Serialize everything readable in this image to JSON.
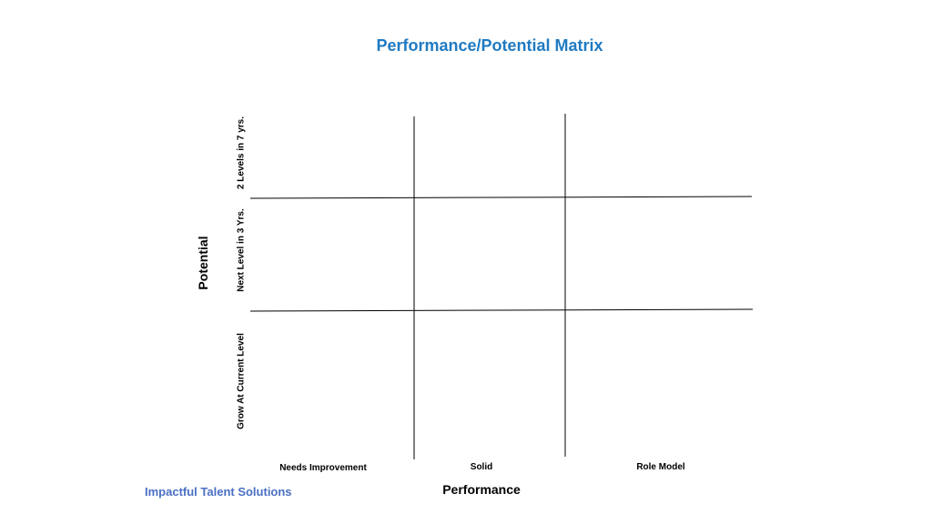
{
  "title": "Performance/Potential Matrix",
  "y_axis": {
    "label": "Potential",
    "rows": [
      "2 Levels in 7 yrs.",
      "Next Level in 3 Yrs.",
      "Grow At Current Level"
    ]
  },
  "x_axis": {
    "label": "Performance",
    "columns": [
      "Needs Improvement",
      "Solid",
      "Role Model"
    ]
  },
  "footer": "Impactful Talent Solutions",
  "colors": {
    "title": "#1f7ac2",
    "footer": "#4a6fc4",
    "lines": "#000000"
  }
}
